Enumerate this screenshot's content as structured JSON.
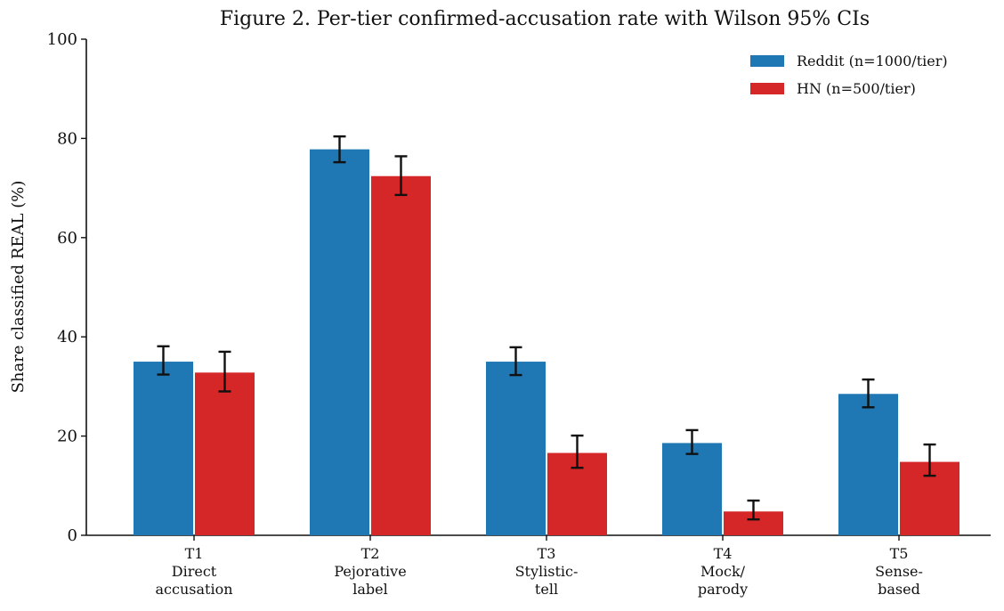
{
  "chart_data": {
    "type": "bar",
    "title": "Figure 2. Per-tier confirmed-accusation rate with Wilson 95% CIs",
    "xlabel": "",
    "ylabel": "Share classified REAL (%)",
    "ylim": [
      0,
      100
    ],
    "yticks": [
      "0",
      "20",
      "40",
      "60",
      "80",
      "100"
    ],
    "categories": [
      [
        "T1",
        "Direct",
        "accusation"
      ],
      [
        "T2",
        "Pejorative",
        "label"
      ],
      [
        "T3",
        "Stylistic-",
        "tell"
      ],
      [
        "T4",
        "Mock/",
        "parody"
      ],
      [
        "T5",
        "Sense-",
        "based"
      ]
    ],
    "series": [
      {
        "name": "Reddit (n=1000/tier)",
        "color": "#1f77b4",
        "values": [
          35.0,
          77.8,
          35.0,
          18.6,
          28.5
        ],
        "ci_low": [
          32.4,
          75.2,
          32.3,
          16.4,
          25.8
        ],
        "ci_high": [
          38.1,
          80.4,
          37.9,
          21.2,
          31.4
        ]
      },
      {
        "name": "HN (n=500/tier)",
        "color": "#d62728",
        "values": [
          32.8,
          72.4,
          16.6,
          4.8,
          14.8
        ],
        "ci_low": [
          29.0,
          68.6,
          13.6,
          3.2,
          12.0
        ],
        "ci_high": [
          37.0,
          76.4,
          20.1,
          7.0,
          18.3
        ]
      }
    ],
    "grid": false,
    "legend": "top-right"
  }
}
